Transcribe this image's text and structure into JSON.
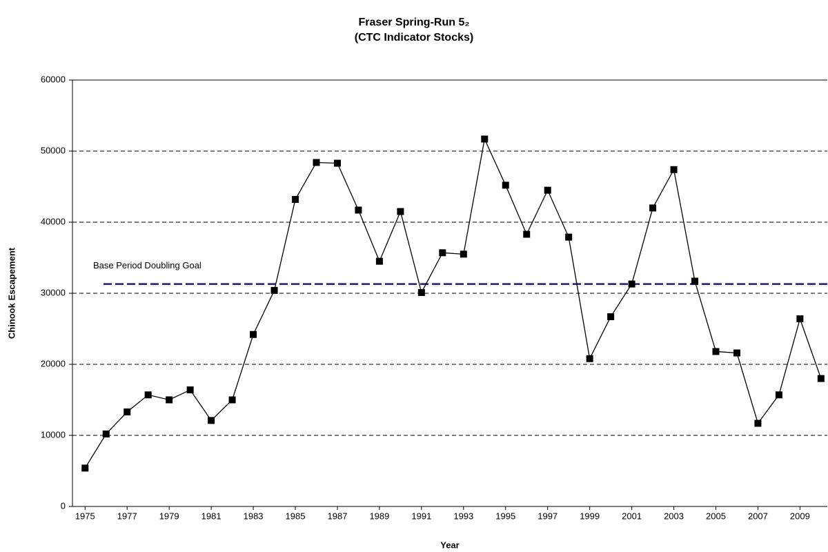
{
  "chart_data": {
    "type": "line",
    "title": "Fraser Spring-Run 5₂",
    "subtitle": "(CTC Indicator Stocks)",
    "x_label": "Year",
    "y_label": "Chinook Escapement",
    "x": [
      1975,
      1976,
      1977,
      1978,
      1979,
      1980,
      1981,
      1982,
      1983,
      1984,
      1985,
      1986,
      1987,
      1988,
      1989,
      1990,
      1991,
      1992,
      1993,
      1994,
      1995,
      1996,
      1997,
      1998,
      1999,
      2000,
      2001,
      2002,
      2003,
      2004,
      2005,
      2006,
      2007,
      2008,
      2009,
      2010
    ],
    "series": [
      {
        "color": "#000000",
        "values": [
          5400,
          10200,
          13300,
          15700,
          15000,
          16400,
          12100,
          15000,
          24200,
          30400,
          43200,
          48400,
          48300,
          41700,
          34500,
          41500,
          30100,
          35700,
          35500,
          51700,
          45200,
          38300,
          44500,
          37900,
          20800,
          26700,
          31300,
          42000,
          47400,
          31700,
          21800,
          21600,
          11700,
          15700,
          26400,
          18000
        ]
      }
    ],
    "xlim": [
      1974.4,
      2010.3
    ],
    "xticks": [
      1975,
      1977,
      1979,
      1981,
      1983,
      1985,
      1987,
      1989,
      1991,
      1993,
      1995,
      1997,
      1999,
      2001,
      2003,
      2005,
      2007,
      2009
    ],
    "ylim": [
      0,
      60000
    ],
    "yticks": [
      0,
      10000,
      20000,
      30000,
      40000,
      50000,
      60000
    ],
    "grid": true,
    "reference_lines": [
      {
        "label": "Base Period Doubling Goal",
        "value": 31300,
        "color": "#1f1f6b"
      }
    ]
  }
}
